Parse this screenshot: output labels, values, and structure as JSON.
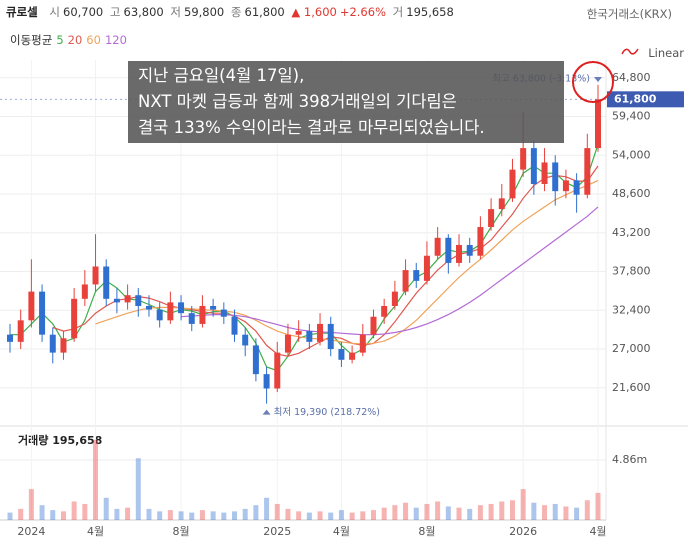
{
  "header": {
    "name": "큐로셀",
    "open_label": "시",
    "open": "60,700",
    "high_label": "고",
    "high": "63,800",
    "low_label": "저",
    "low": "59,800",
    "close_label": "종",
    "close": "61,800",
    "change": "▲ 1,600",
    "change_pct": "+2.66%",
    "volume_label": "거",
    "volume": "195,658",
    "exchange": "한국거래소(KRX)"
  },
  "ma_legend": {
    "label": "이동평균"
  },
  "scale_mode": "Linear",
  "overlay": {
    "lines": [
      "지난 금요일(4월 17일),",
      "NXT 마켓 급등과 함께 398거래일의 기다림은",
      "결국 133% 수익이라는 결과로 마무리되었습니다."
    ]
  },
  "chart_data": {
    "type": "candlestick",
    "categories": [
      null,
      null,
      "2024",
      null,
      null,
      null,
      null,
      null,
      "4월",
      null,
      null,
      null,
      null,
      null,
      null,
      null,
      "8월",
      null,
      null,
      null,
      null,
      null,
      null,
      null,
      null,
      "2025",
      null,
      null,
      null,
      null,
      null,
      "4월",
      null,
      null,
      null,
      null,
      null,
      null,
      null,
      "8월",
      null,
      null,
      null,
      null,
      null,
      null,
      null,
      null,
      "2026",
      null,
      null,
      null,
      null,
      null,
      null,
      "4월"
    ],
    "open": [
      29000,
      28000,
      31000,
      35000,
      29000,
      26500,
      28500,
      34000,
      36000,
      38500,
      34000,
      33500,
      34500,
      33000,
      32500,
      31000,
      33500,
      32000,
      30500,
      33000,
      32500,
      31500,
      29000,
      27500,
      23500,
      21500,
      26500,
      29000,
      29500,
      28000,
      30500,
      27000,
      25500,
      26500,
      29000,
      31500,
      33000,
      35000,
      38000,
      36500,
      40000,
      42500,
      39000,
      41500,
      40000,
      44000,
      46500,
      48000,
      52000,
      55000,
      50000,
      53000,
      49000,
      50500,
      48500,
      55000
    ],
    "high": [
      30500,
      32500,
      39500,
      36000,
      30000,
      29500,
      35500,
      38000,
      43000,
      39500,
      35500,
      36000,
      35500,
      34500,
      33500,
      35000,
      34500,
      33000,
      34500,
      34000,
      33500,
      32500,
      30000,
      28500,
      24500,
      28000,
      30500,
      31000,
      30500,
      32000,
      31500,
      28000,
      27500,
      30500,
      32500,
      34000,
      36500,
      39500,
      39000,
      42000,
      44000,
      43000,
      43000,
      42500,
      45500,
      48000,
      50000,
      53500,
      60000,
      56000,
      55000,
      54000,
      52000,
      51500,
      57000,
      63800
    ],
    "low": [
      26500,
      27000,
      30000,
      28000,
      25000,
      25500,
      28000,
      33000,
      35000,
      33000,
      32000,
      32500,
      31500,
      31500,
      30000,
      30500,
      31000,
      29500,
      30000,
      31500,
      30500,
      28000,
      26000,
      22500,
      19390,
      21000,
      26000,
      28000,
      27000,
      27500,
      26000,
      24500,
      25000,
      26000,
      28500,
      30500,
      32500,
      34500,
      35500,
      36000,
      39500,
      37500,
      38500,
      39000,
      39500,
      43500,
      45500,
      47500,
      51000,
      48500,
      49000,
      47000,
      48000,
      46000,
      48000,
      54500
    ],
    "close": [
      28000,
      31000,
      35000,
      29000,
      26500,
      28500,
      34000,
      36000,
      38500,
      34000,
      33500,
      34500,
      33000,
      32500,
      31000,
      33500,
      32000,
      30500,
      33000,
      32500,
      31500,
      29000,
      27500,
      23500,
      21500,
      26500,
      29000,
      29500,
      28000,
      30500,
      27000,
      25500,
      26500,
      29000,
      31500,
      33000,
      35000,
      38000,
      36500,
      40000,
      42500,
      39000,
      41500,
      40000,
      44000,
      46500,
      48000,
      52000,
      55000,
      50000,
      53000,
      49000,
      50500,
      48500,
      55000,
      61800
    ],
    "colors": {
      "up": "#e8413b",
      "down": "#2f6fd0"
    },
    "ylim": [
      19200,
      67000
    ],
    "yticks": [
      {
        "value": 21600,
        "label": "21,600"
      },
      {
        "value": 27000,
        "label": "27,000"
      },
      {
        "value": 32400,
        "label": "32,400"
      },
      {
        "value": 37800,
        "label": "37,800"
      },
      {
        "value": 43200,
        "label": "43,200"
      },
      {
        "value": 48600,
        "label": "48,600"
      },
      {
        "value": 54000,
        "label": "54,000"
      },
      {
        "value": 59400,
        "label": "59,400"
      },
      {
        "value": 64800,
        "label": "64,800"
      }
    ],
    "grid": true,
    "ma_series": [
      {
        "name": "5",
        "color": "#3fae49",
        "values": [
          29000,
          29000,
          30500,
          32000,
          30500,
          28000,
          28500,
          31000,
          35000,
          36500,
          35500,
          34000,
          33800,
          33200,
          32500,
          32000,
          32500,
          32300,
          31800,
          32200,
          32300,
          31500,
          30000,
          27800,
          24500,
          24000,
          26000,
          28500,
          29000,
          29200,
          29200,
          27500,
          26200,
          27000,
          28800,
          31200,
          33000,
          35200,
          37000,
          37800,
          39500,
          40800,
          40500,
          40600,
          41600,
          44000,
          46300,
          48500,
          51500,
          52500,
          51500,
          51500,
          50200,
          49500,
          51000,
          55500
        ]
      },
      {
        "name": "20",
        "color": "#e0584f",
        "values": [
          null,
          null,
          null,
          null,
          30000,
          29500,
          29800,
          30500,
          32000,
          33000,
          33800,
          34000,
          34300,
          34100,
          33600,
          33000,
          32700,
          32500,
          32200,
          32000,
          32000,
          31600,
          30800,
          29500,
          27500,
          26300,
          26000,
          26400,
          27200,
          28000,
          28700,
          28500,
          27800,
          27500,
          27800,
          29000,
          30800,
          32800,
          34800,
          36400,
          38000,
          39300,
          40200,
          40500,
          41000,
          42200,
          44000,
          45800,
          48000,
          49800,
          50800,
          51200,
          51000,
          50400,
          50400,
          52500
        ]
      },
      {
        "name": "60",
        "color": "#f0a35a",
        "values": [
          null,
          null,
          null,
          null,
          null,
          null,
          null,
          null,
          30500,
          31000,
          31500,
          32000,
          32400,
          32700,
          32800,
          32800,
          32700,
          32600,
          32500,
          32400,
          32300,
          32100,
          31700,
          31000,
          30200,
          29500,
          29000,
          28700,
          28500,
          28400,
          28300,
          28000,
          27800,
          27700,
          27800,
          28100,
          28800,
          29800,
          31000,
          32500,
          34000,
          35500,
          37000,
          38300,
          39500,
          40800,
          42200,
          43600,
          44800,
          45800,
          46800,
          47800,
          48500,
          49200,
          49800,
          50500
        ]
      },
      {
        "name": "120",
        "color": "#b36ad6",
        "values": [
          null,
          null,
          null,
          null,
          null,
          null,
          null,
          null,
          null,
          null,
          null,
          null,
          null,
          null,
          null,
          null,
          31500,
          31600,
          31700,
          31800,
          31800,
          31700,
          31500,
          31200,
          30800,
          30400,
          30000,
          29700,
          29500,
          29400,
          29300,
          29200,
          29100,
          29000,
          29000,
          29100,
          29300,
          29600,
          30000,
          30500,
          31100,
          31800,
          32600,
          33500,
          34500,
          35600,
          36700,
          37800,
          38900,
          40000,
          41100,
          42200,
          43300,
          44400,
          45500,
          46800
        ]
      }
    ],
    "max_label": "최고 63,800 (-3.13%)",
    "min_label": "최저 19,390 (218.72%)",
    "last_price": {
      "value": 61800,
      "label": "61,800",
      "color": "#3d5bb0"
    },
    "volume": {
      "title": "거래량 195,658",
      "values": [
        600000,
        900000,
        2500000,
        1200000,
        800000,
        700000,
        1500000,
        1300000,
        6500000,
        1800000,
        900000,
        1000000,
        5000000,
        900000,
        700000,
        800000,
        700000,
        600000,
        800000,
        700000,
        600000,
        700000,
        900000,
        1200000,
        1800000,
        1300000,
        900000,
        700000,
        600000,
        700000,
        600000,
        800000,
        600000,
        700000,
        800000,
        1000000,
        1200000,
        1400000,
        1000000,
        1300000,
        1500000,
        1100000,
        1000000,
        900000,
        1200000,
        1300000,
        1500000,
        1600000,
        2500000,
        1400000,
        1200000,
        1300000,
        1100000,
        1000000,
        1600000,
        2200000
      ],
      "ylim": [
        0,
        7290000
      ],
      "yticks": [
        {
          "value": 4860000,
          "label": "4.86m"
        }
      ]
    }
  }
}
